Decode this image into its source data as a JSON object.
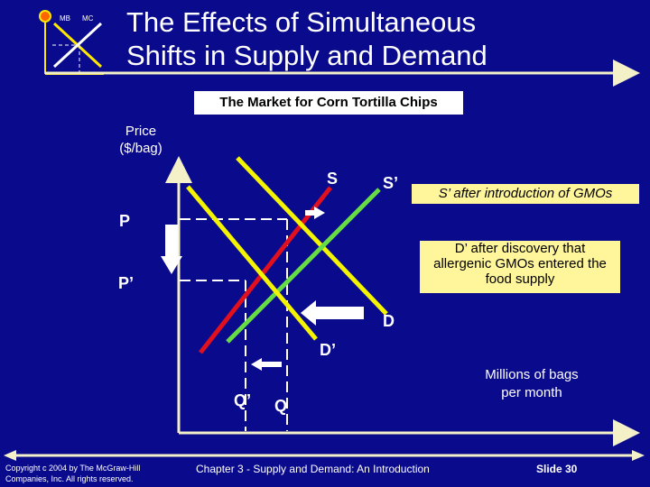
{
  "title": {
    "line1": "The Effects of Simultaneous",
    "line2": "Shifts in Supply and Demand"
  },
  "logo": {
    "mb": "MB",
    "mc": "MC"
  },
  "banner": "The Market for Corn Tortilla Chips",
  "axes": {
    "y_label_line1": "Price",
    "y_label_line2": "($/bag)",
    "x_label_line1": "Millions of bags",
    "x_label_line2": "per month"
  },
  "curves": {
    "s": "S",
    "s_prime": "S’",
    "d": "D",
    "d_prime": "D’"
  },
  "levels": {
    "p": "P",
    "p_prime": "P’",
    "q": "Q",
    "q_prime": "Q’"
  },
  "notes": {
    "supply_shift": "S’ after introduction of GMOs",
    "demand_shift_line1": "D’ after discovery that",
    "demand_shift_line2": "allergenic GMOs entered the",
    "demand_shift_line3": "food supply"
  },
  "colors": {
    "background": "#0a0a8c",
    "supply_s": "#e0101e",
    "supply_s_prime": "#66dd44",
    "demand": "#f4f400",
    "arrow": "#ffffff",
    "note_fill": "#fff59a",
    "axis": "#f4f0c8"
  },
  "footer": {
    "copyright_line1": "Copyright c 2004 by The McGraw-Hill",
    "copyright_line2": "Companies, Inc.  All rights reserved.",
    "chapter": "Chapter 3 - Supply and Demand:  An Introduction",
    "slide": "Slide 30"
  }
}
